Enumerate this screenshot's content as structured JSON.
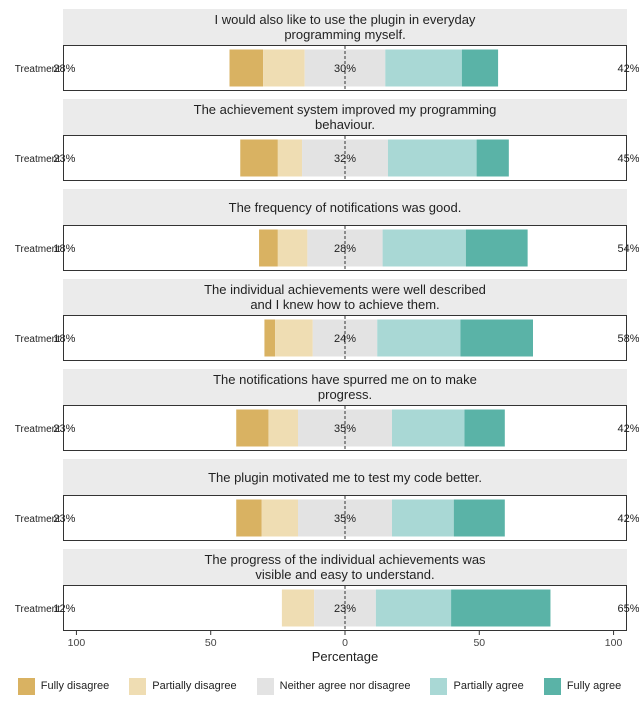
{
  "chart_data": {
    "type": "stacked-diverging-bar",
    "xlabel": "Percentage",
    "xticks": [
      {
        "value": -100,
        "label": "100"
      },
      {
        "value": -50,
        "label": "50"
      },
      {
        "value": 0,
        "label": "0"
      },
      {
        "value": 50,
        "label": "50"
      },
      {
        "value": 100,
        "label": "100"
      }
    ],
    "xlim": [
      -105,
      105
    ],
    "categories": [
      "Fully disagree",
      "Partially disagree",
      "Neither agree nor disagree",
      "Partially agree",
      "Fully agree"
    ],
    "colors": [
      "#D9B262",
      "#EFDDB3",
      "#E3E3E3",
      "#A9D8D5",
      "#5AB3A7"
    ],
    "group_label": "Treatment",
    "panels": [
      {
        "title": [
          "I would also like to use the plugin in everyday",
          "programming myself."
        ],
        "values": [
          12.5,
          15.5,
          30,
          28.5,
          13.5
        ],
        "left_label": "28%",
        "center_label": "30%",
        "right_label": "42%"
      },
      {
        "title": [
          "The achievement system improved my programming",
          "behaviour."
        ],
        "values": [
          14,
          9,
          32,
          33,
          12
        ],
        "left_label": "23%",
        "center_label": "32%",
        "right_label": "45%"
      },
      {
        "title": [
          "The frequency of notifications was good."
        ],
        "values": [
          7,
          11,
          28,
          31,
          23
        ],
        "left_label": "18%",
        "center_label": "28%",
        "right_label": "54%"
      },
      {
        "title": [
          "The individual achievements were well described",
          "and I knew how to achieve them."
        ],
        "values": [
          4,
          14,
          24,
          31,
          27
        ],
        "left_label": "18%",
        "center_label": "24%",
        "right_label": "58%"
      },
      {
        "title": [
          "The notifications have spurred me on to make",
          "progress."
        ],
        "values": [
          12,
          11,
          35,
          27,
          15
        ],
        "left_label": "23%",
        "center_label": "35%",
        "right_label": "42%"
      },
      {
        "title": [
          "The plugin motivated me to test my code better."
        ],
        "values": [
          9.5,
          13.5,
          35,
          23,
          19
        ],
        "left_label": "23%",
        "center_label": "35%",
        "right_label": "42%"
      },
      {
        "title": [
          "The progress of the individual achievements was",
          "visible and easy to understand."
        ],
        "values": [
          0,
          12,
          23,
          28,
          37
        ],
        "left_label": "12%",
        "center_label": "23%",
        "right_label": "65%"
      }
    ]
  }
}
